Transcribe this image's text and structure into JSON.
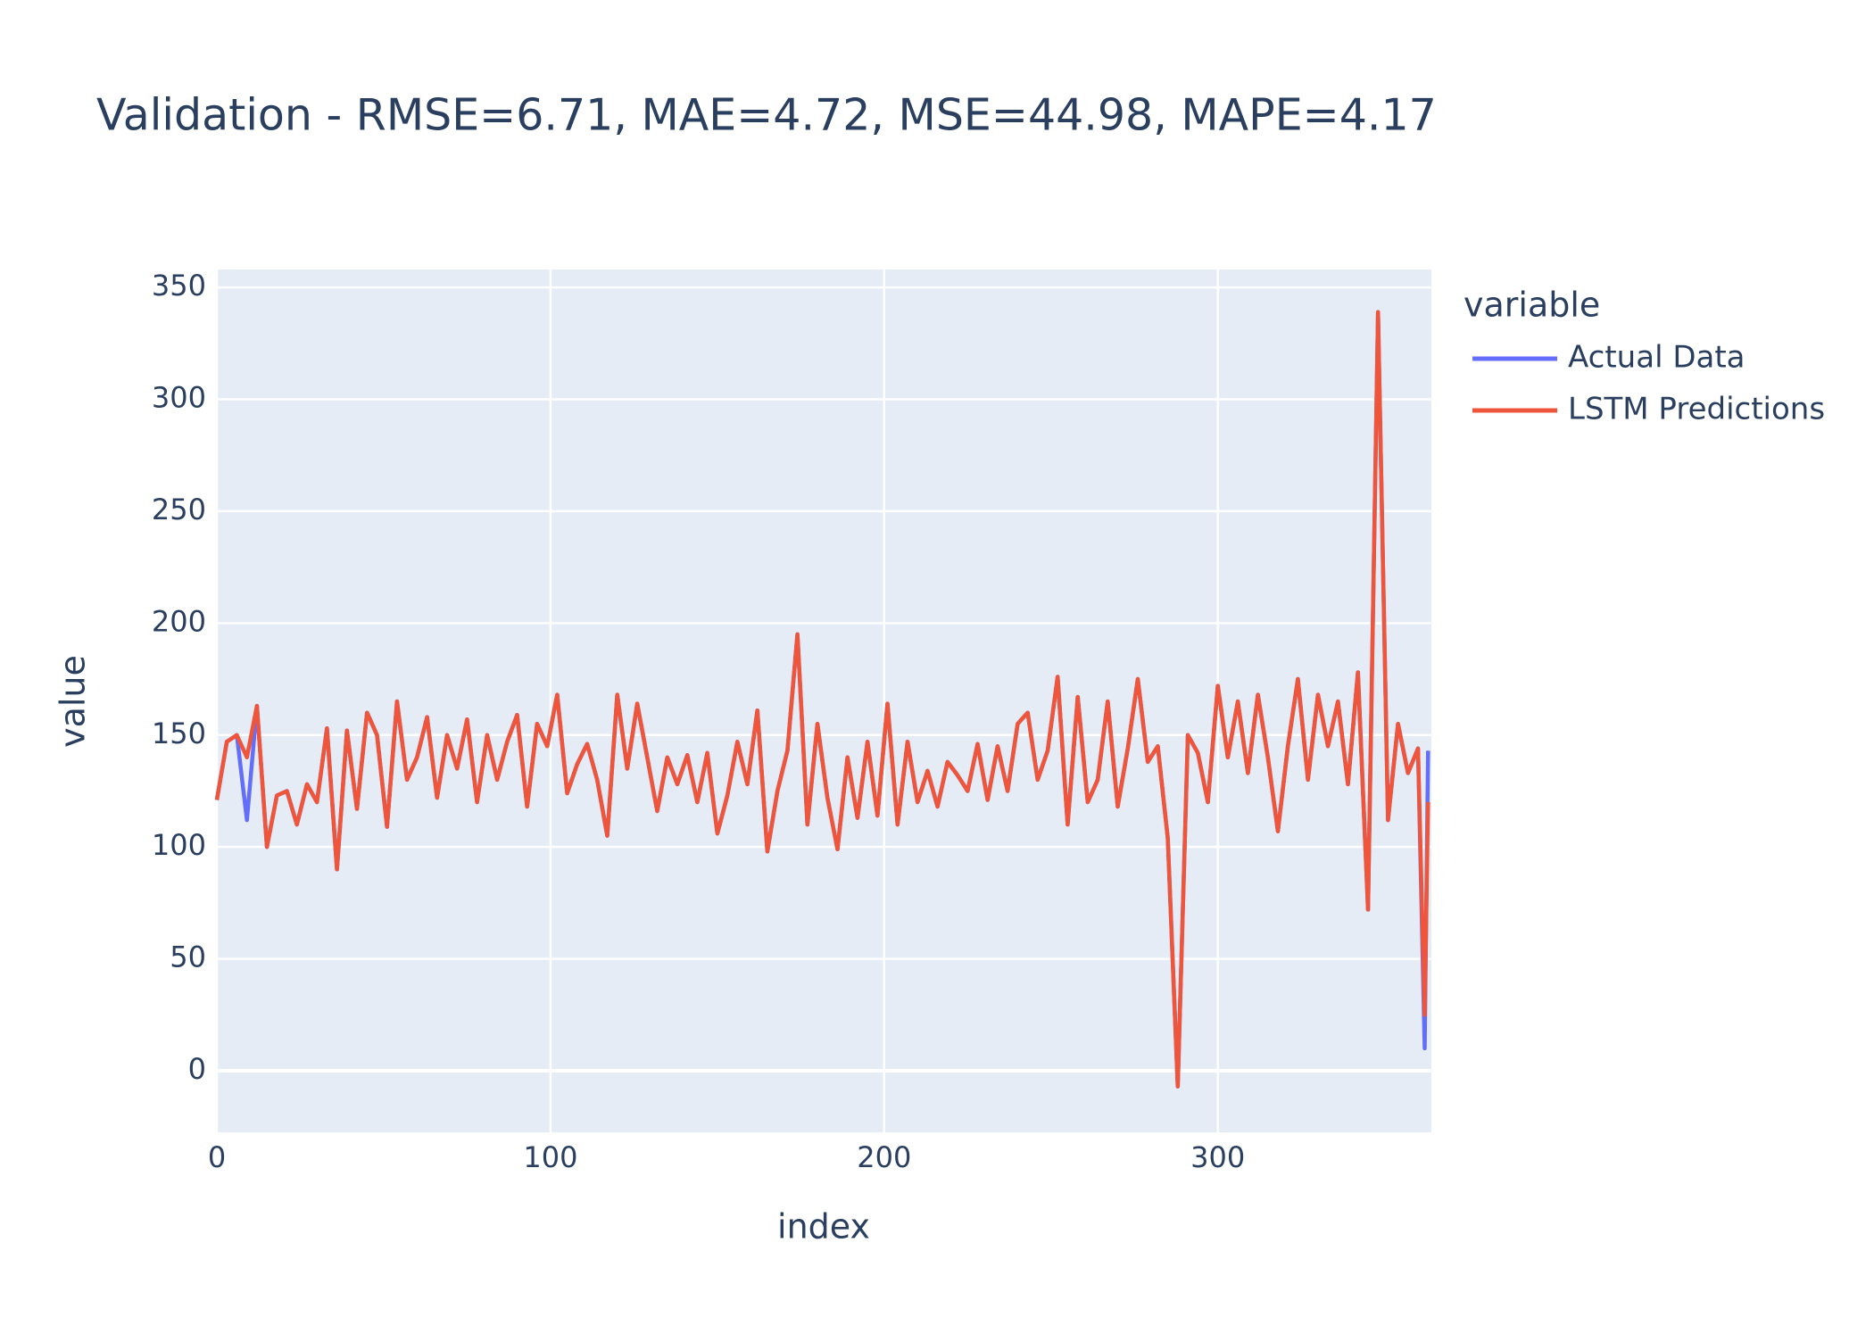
{
  "chart_data": {
    "type": "line",
    "title": "Validation - RMSE=6.71, MAE=4.72, MSE=44.98, MAPE=4.17",
    "x_label": "index",
    "y_label": "value",
    "legend_title": "variable",
    "x": [
      0,
      3,
      6,
      9,
      12,
      15,
      18,
      21,
      24,
      27,
      30,
      33,
      36,
      39,
      42,
      45,
      48,
      51,
      54,
      57,
      60,
      63,
      66,
      69,
      72,
      75,
      78,
      81,
      84,
      87,
      90,
      93,
      96,
      99,
      102,
      105,
      108,
      111,
      114,
      117,
      120,
      123,
      126,
      129,
      132,
      135,
      138,
      141,
      144,
      147,
      150,
      153,
      156,
      159,
      162,
      165,
      168,
      171,
      174,
      177,
      180,
      183,
      186,
      189,
      192,
      195,
      198,
      201,
      204,
      207,
      210,
      213,
      216,
      219,
      222,
      225,
      228,
      231,
      234,
      237,
      240,
      243,
      246,
      249,
      252,
      255,
      258,
      261,
      264,
      267,
      270,
      273,
      276,
      279,
      282,
      285,
      288,
      291,
      294,
      297,
      300,
      303,
      306,
      309,
      312,
      315,
      318,
      321,
      324,
      327,
      330,
      333,
      336,
      339,
      342,
      345,
      348,
      351,
      354,
      357,
      360,
      362,
      363
    ],
    "series": [
      {
        "name": "Actual Data",
        "color": "#636efa",
        "values": [
          121,
          147,
          150,
          112,
          163,
          100,
          123,
          125,
          110,
          128,
          120,
          153,
          90,
          152,
          117,
          160,
          150,
          109,
          165,
          130,
          140,
          158,
          122,
          150,
          135,
          157,
          120,
          150,
          130,
          147,
          159,
          118,
          155,
          145,
          168,
          124,
          137,
          146,
          130,
          105,
          168,
          135,
          164,
          140,
          116,
          140,
          128,
          141,
          120,
          142,
          106,
          123,
          147,
          128,
          161,
          98,
          125,
          143,
          195,
          110,
          155,
          122,
          99,
          140,
          113,
          147,
          114,
          164,
          110,
          147,
          120,
          134,
          118,
          138,
          132,
          125,
          146,
          121,
          145,
          125,
          155,
          160,
          130,
          143,
          176,
          110,
          167,
          120,
          130,
          165,
          118,
          144,
          175,
          138,
          145,
          104,
          -7,
          150,
          142,
          120,
          172,
          140,
          165,
          133,
          168,
          140,
          107,
          145,
          175,
          130,
          168,
          145,
          165,
          128,
          178,
          72,
          339,
          112,
          155,
          133,
          144,
          10,
          143
        ]
      },
      {
        "name": "LSTM Predictions",
        "color": "#ef553b",
        "values": [
          121,
          147,
          150,
          140,
          163,
          100,
          123,
          125,
          110,
          128,
          120,
          153,
          90,
          152,
          117,
          160,
          150,
          109,
          165,
          130,
          140,
          158,
          122,
          150,
          135,
          157,
          120,
          150,
          130,
          147,
          159,
          118,
          155,
          145,
          168,
          124,
          137,
          146,
          130,
          105,
          168,
          135,
          164,
          140,
          116,
          140,
          128,
          141,
          120,
          142,
          106,
          123,
          147,
          128,
          161,
          98,
          125,
          143,
          195,
          110,
          155,
          122,
          99,
          140,
          113,
          147,
          114,
          164,
          110,
          147,
          120,
          134,
          118,
          138,
          132,
          125,
          146,
          121,
          145,
          125,
          155,
          160,
          130,
          143,
          176,
          110,
          167,
          120,
          130,
          165,
          118,
          144,
          175,
          138,
          145,
          104,
          -7,
          150,
          142,
          120,
          172,
          140,
          165,
          133,
          168,
          140,
          107,
          145,
          175,
          130,
          168,
          145,
          165,
          128,
          178,
          72,
          339,
          112,
          155,
          133,
          144,
          25,
          120
        ]
      }
    ],
    "xlim": [
      0,
      364
    ],
    "ylim": [
      -27.5,
      358
    ],
    "xticks": [
      0,
      100,
      200,
      300
    ],
    "yticks": [
      0,
      50,
      100,
      150,
      200,
      250,
      300,
      350
    ],
    "grid": true,
    "legend_position": "right"
  }
}
